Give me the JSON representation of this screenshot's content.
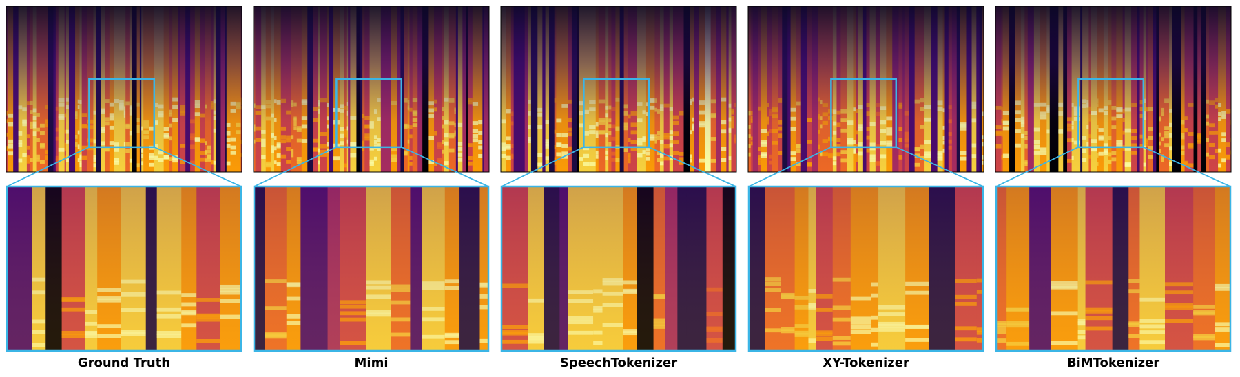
{
  "panels": [
    {
      "label": "Ground Truth"
    },
    {
      "label": "Mimi"
    },
    {
      "label": "SpeechTokenizer"
    },
    {
      "label": "XY-Tokenizer"
    },
    {
      "label": "BiMTokenizer"
    }
  ]
}
